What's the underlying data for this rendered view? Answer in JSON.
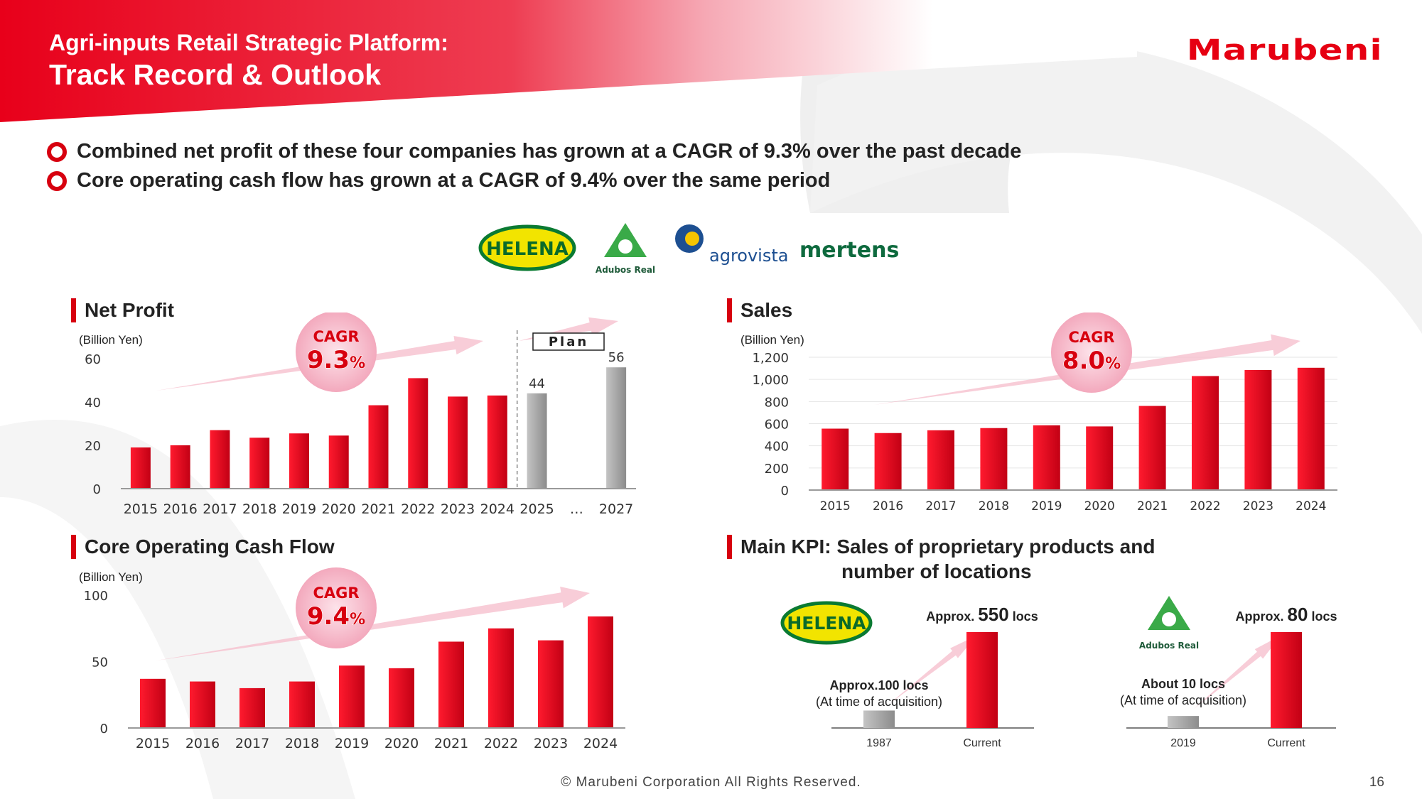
{
  "header": {
    "title_line1": "Agri-inputs Retail Strategic Platform:",
    "title_line2": "Track Record & Outlook",
    "brand": "Marubeni"
  },
  "bullets": [
    "Combined net profit of these four companies has grown at a CAGR of 9.3% over the past decade",
    "Core operating cash flow has grown at a CAGR of 9.4% over the same period"
  ],
  "logos": {
    "helena": "HELENA",
    "adubos_real": "Adubos Real",
    "agrovista": "agrovista",
    "mertens": "mertens"
  },
  "colors": {
    "accent": "#d7000f",
    "bar_red": "#e00016",
    "bar_gray": "#a6a6a6",
    "cagr_pink": "#f6bccb"
  },
  "footer": {
    "copyright": "© Marubeni Corporation All Rights Reserved.",
    "page": "16"
  },
  "chart_data": [
    {
      "id": "net_profit",
      "type": "bar",
      "title": "Net Profit",
      "unit": "(Billion Yen)",
      "categories": [
        "2015",
        "2016",
        "2017",
        "2018",
        "2019",
        "2020",
        "2021",
        "2022",
        "2023",
        "2024",
        "2025",
        "…",
        "2027"
      ],
      "values": [
        19,
        20,
        27,
        23.5,
        25.5,
        24.5,
        38.5,
        51,
        42.5,
        43,
        44,
        null,
        56
      ],
      "plan_from_index": 10,
      "plan_label": "Plan",
      "data_labels": {
        "10": "44",
        "12": "56"
      },
      "ylim": [
        0,
        60
      ],
      "yticks": [
        "0",
        "20",
        "40",
        "60"
      ],
      "cagr_label": "CAGR",
      "cagr_value": "9.3",
      "cagr_pct": "%"
    },
    {
      "id": "sales",
      "type": "bar",
      "title": "Sales",
      "unit": "(Billion Yen)",
      "categories": [
        "2015",
        "2016",
        "2017",
        "2018",
        "2019",
        "2020",
        "2021",
        "2022",
        "2023",
        "2024"
      ],
      "values": [
        555,
        515,
        540,
        560,
        585,
        575,
        760,
        1030,
        1085,
        1105
      ],
      "ylim": [
        0,
        1200
      ],
      "yticks": [
        "0",
        "200",
        "400",
        "600",
        "800",
        "1,000",
        "1,200"
      ],
      "cagr_label": "CAGR",
      "cagr_value": "8.0",
      "cagr_pct": "%"
    },
    {
      "id": "core_ocf",
      "type": "bar",
      "title": "Core Operating Cash Flow",
      "unit": "(Billion Yen)",
      "categories": [
        "2015",
        "2016",
        "2017",
        "2018",
        "2019",
        "2020",
        "2021",
        "2022",
        "2023",
        "2024"
      ],
      "values": [
        37,
        35,
        30,
        35,
        47,
        45,
        65,
        75,
        66,
        84
      ],
      "ylim": [
        0,
        100
      ],
      "yticks": [
        "0",
        "50",
        "100"
      ],
      "cagr_label": "CAGR",
      "cagr_value": "9.4",
      "cagr_pct": "%"
    },
    {
      "id": "kpi_helena",
      "type": "bar",
      "categories": [
        "1987",
        "Current"
      ],
      "values": [
        100,
        550
      ],
      "then_label_1": "Approx.100 locs",
      "then_label_2": "(At time of acquisition)",
      "now_prefix": "Approx.",
      "now_value": "550",
      "now_suffix": "locs"
    },
    {
      "id": "kpi_adubos",
      "type": "bar",
      "categories": [
        "2019",
        "Current"
      ],
      "values": [
        10,
        80
      ],
      "then_label_1": "About 10 locs",
      "then_label_2": "(At time of acquisition)",
      "now_prefix": "Approx.",
      "now_value": "80",
      "now_suffix": "locs"
    }
  ],
  "kpi": {
    "title_line1": "Main KPI: Sales of proprietary products and",
    "title_line2": "number of locations"
  }
}
